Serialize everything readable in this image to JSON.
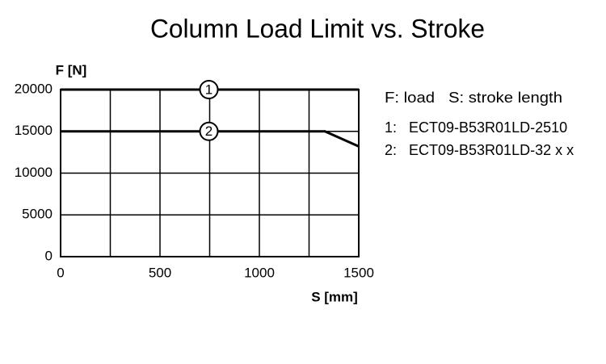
{
  "chart_data": {
    "type": "line",
    "title": "Column Load Limit vs. Stroke",
    "y_label": "F [N]",
    "x_label": "S [mm]",
    "xlim": [
      0,
      1500
    ],
    "xticks": [
      0,
      500,
      1000,
      1500
    ],
    "xgrid": [
      0,
      250,
      500,
      750,
      1000,
      1250,
      1500
    ],
    "ylim": [
      0,
      20000
    ],
    "yticks": [
      0,
      5000,
      10000,
      15000,
      20000
    ],
    "grid": true,
    "legend_note": "F: load   S: stroke length",
    "series": [
      {
        "name": "ECT09-B53R01LD-2510",
        "marker_label": "1",
        "legend_key": "1:",
        "color": "#000000",
        "x": [
          0,
          1500
        ],
        "values": [
          20000,
          20000
        ]
      },
      {
        "name": "ECT09-B53R01LD-32 x x",
        "marker_label": "2",
        "legend_key": "2:",
        "color": "#000000",
        "x": [
          0,
          1330,
          1500
        ],
        "values": [
          15000,
          15000,
          13200
        ]
      }
    ]
  }
}
